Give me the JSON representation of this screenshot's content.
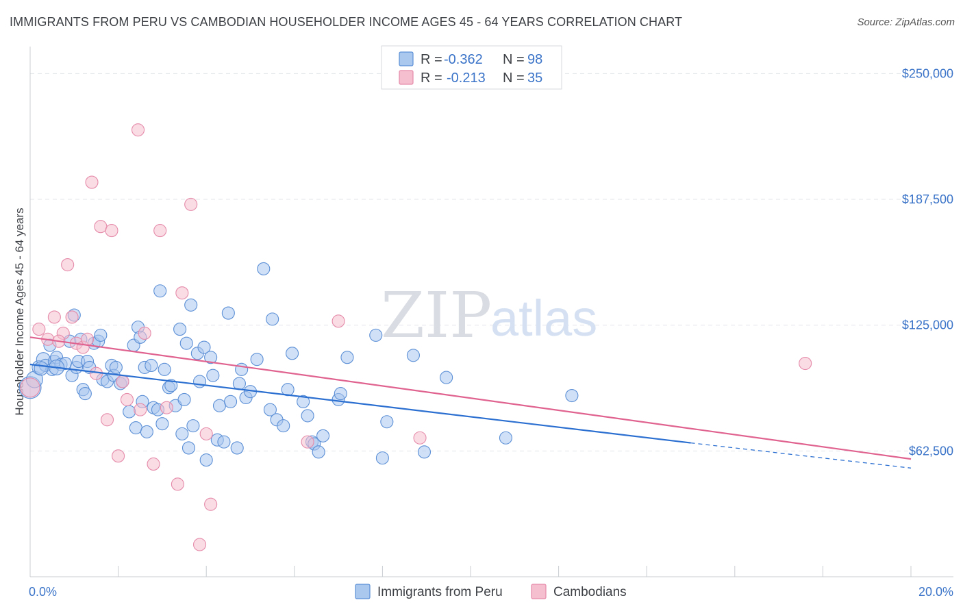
{
  "title": "IMMIGRANTS FROM PERU VS CAMBODIAN HOUSEHOLDER INCOME AGES 45 - 64 YEARS CORRELATION CHART",
  "source": "Source: ZipAtlas.com",
  "watermark": {
    "zip": "ZIP",
    "atlas": "atlas"
  },
  "legend_top": [
    {
      "r_label": "R = ",
      "r_value": "-0.362",
      "n_label": "N = ",
      "n_value": "98"
    },
    {
      "r_label": "R = ",
      "r_value": "-0.213",
      "n_label": "N = ",
      "n_value": "35"
    }
  ],
  "colors": {
    "peru_fill": "#aac7ee",
    "peru_stroke": "#5b8fd6",
    "peru_line": "#2b6fd1",
    "camb_fill": "#f6bfd0",
    "camb_stroke": "#e58aa9",
    "camb_line": "#e0628f",
    "accent_text": "#3b74c8",
    "grid": "#e3e6ea"
  },
  "chart_data": {
    "type": "scatter",
    "title": "IMMIGRANTS FROM PERU VS CAMBODIAN HOUSEHOLDER INCOME AGES 45 - 64 YEARS CORRELATION CHART",
    "xlabel": "",
    "ylabel": "Householder Income Ages 45 - 64 years",
    "xlim": [
      0,
      20
    ],
    "ylim": [
      0,
      260000
    ],
    "x_tick_labels": [
      "0.0%",
      "20.0%"
    ],
    "y_ticks": [
      62500,
      125000,
      187500,
      250000
    ],
    "y_tick_labels": [
      "$62,500",
      "$125,000",
      "$187,500",
      "$250,000"
    ],
    "grid": true,
    "legend_position": "top-center",
    "series": [
      {
        "name": "Immigrants from Peru",
        "trend": {
          "x": [
            0,
            15
          ],
          "y": [
            105500,
            66500
          ],
          "dashed_to": [
            20,
            54000
          ]
        },
        "points": [
          [
            0.0,
            94000,
            16
          ],
          [
            0.1,
            98000,
            12
          ],
          [
            0.2,
            104000,
            10
          ],
          [
            0.3,
            108000,
            10
          ],
          [
            0.35,
            105000,
            9
          ],
          [
            0.45,
            115000,
            9
          ],
          [
            0.5,
            103000,
            9
          ],
          [
            0.55,
            107000,
            9
          ],
          [
            0.6,
            109000,
            9
          ],
          [
            0.7,
            105500,
            9
          ],
          [
            0.8,
            106000,
            9
          ],
          [
            0.9,
            117000,
            9
          ],
          [
            0.95,
            100000,
            9
          ],
          [
            1.0,
            130000,
            9
          ],
          [
            1.05,
            104000,
            9
          ],
          [
            1.1,
            107000,
            9
          ],
          [
            1.15,
            118000,
            9
          ],
          [
            1.2,
            93000,
            9
          ],
          [
            1.25,
            91000,
            9
          ],
          [
            1.3,
            107000,
            9
          ],
          [
            1.35,
            104000,
            9
          ],
          [
            1.45,
            116000,
            9
          ],
          [
            1.55,
            117000,
            9
          ],
          [
            1.6,
            120000,
            9
          ],
          [
            1.65,
            98000,
            9
          ],
          [
            1.75,
            97000,
            9
          ],
          [
            1.85,
            105000,
            9
          ],
          [
            1.9,
            100000,
            9
          ],
          [
            1.95,
            104000,
            9
          ],
          [
            2.05,
            96000,
            9
          ],
          [
            2.1,
            97000,
            9
          ],
          [
            2.25,
            82000,
            9
          ],
          [
            2.35,
            115000,
            9
          ],
          [
            2.4,
            74000,
            9
          ],
          [
            2.45,
            124000,
            9
          ],
          [
            2.5,
            119000,
            9
          ],
          [
            2.55,
            87000,
            9
          ],
          [
            2.6,
            104000,
            9
          ],
          [
            2.65,
            72000,
            9
          ],
          [
            2.75,
            105000,
            9
          ],
          [
            2.8,
            84000,
            9
          ],
          [
            2.9,
            83000,
            9
          ],
          [
            2.95,
            142000,
            9
          ],
          [
            3.0,
            76000,
            9
          ],
          [
            3.05,
            103000,
            9
          ],
          [
            3.15,
            94000,
            9
          ],
          [
            3.2,
            95000,
            9
          ],
          [
            3.3,
            85000,
            9
          ],
          [
            3.4,
            123000,
            9
          ],
          [
            3.45,
            71000,
            9
          ],
          [
            3.5,
            88000,
            9
          ],
          [
            3.55,
            116000,
            9
          ],
          [
            3.6,
            64000,
            9
          ],
          [
            3.65,
            135000,
            9
          ],
          [
            3.7,
            75000,
            9
          ],
          [
            3.8,
            111000,
            9
          ],
          [
            3.85,
            97000,
            9
          ],
          [
            3.95,
            114000,
            9
          ],
          [
            4.0,
            58000,
            9
          ],
          [
            4.1,
            109000,
            9
          ],
          [
            4.15,
            100000,
            9
          ],
          [
            4.25,
            68000,
            9
          ],
          [
            4.3,
            85000,
            9
          ],
          [
            4.4,
            67000,
            9
          ],
          [
            4.5,
            131000,
            9
          ],
          [
            4.55,
            87000,
            9
          ],
          [
            4.7,
            64000,
            9
          ],
          [
            4.75,
            96000,
            9
          ],
          [
            4.8,
            103000,
            9
          ],
          [
            4.9,
            89000,
            9
          ],
          [
            5.0,
            92000,
            9
          ],
          [
            5.15,
            108000,
            9
          ],
          [
            5.3,
            153000,
            9
          ],
          [
            5.45,
            83000,
            9
          ],
          [
            5.5,
            128000,
            9
          ],
          [
            5.6,
            78000,
            9
          ],
          [
            5.75,
            75000,
            9
          ],
          [
            5.85,
            93000,
            9
          ],
          [
            5.95,
            111000,
            9
          ],
          [
            6.2,
            87000,
            9
          ],
          [
            6.3,
            80000,
            9
          ],
          [
            6.4,
            67000,
            9
          ],
          [
            6.45,
            66000,
            9
          ],
          [
            6.55,
            62000,
            9
          ],
          [
            6.65,
            70000,
            9
          ],
          [
            7.0,
            88000,
            9
          ],
          [
            7.05,
            91000,
            9
          ],
          [
            7.2,
            109000,
            9
          ],
          [
            7.85,
            120000,
            9
          ],
          [
            8.0,
            59000,
            9
          ],
          [
            8.1,
            77000,
            9
          ],
          [
            8.7,
            110000,
            9
          ],
          [
            8.95,
            62000,
            9
          ],
          [
            9.45,
            99000,
            9
          ],
          [
            10.8,
            69000,
            9
          ],
          [
            12.3,
            90000,
            9
          ],
          [
            0.6,
            104000,
            11
          ],
          [
            0.25,
            103500,
            10
          ]
        ]
      },
      {
        "name": "Cambodians",
        "trend": {
          "x": [
            0,
            20
          ],
          "y": [
            119000,
            58500
          ]
        },
        "points": [
          [
            0.0,
            94000,
            14
          ],
          [
            0.2,
            123000,
            9
          ],
          [
            0.4,
            118000,
            9
          ],
          [
            0.55,
            129000,
            9
          ],
          [
            0.75,
            121000,
            9
          ],
          [
            0.85,
            155000,
            9
          ],
          [
            0.95,
            129000,
            9
          ],
          [
            1.05,
            116000,
            9
          ],
          [
            1.2,
            114000,
            9
          ],
          [
            1.3,
            118000,
            9
          ],
          [
            1.4,
            196000,
            9
          ],
          [
            1.5,
            101000,
            9
          ],
          [
            1.6,
            174000,
            9
          ],
          [
            1.75,
            78000,
            9
          ],
          [
            1.85,
            172000,
            9
          ],
          [
            2.0,
            60000,
            9
          ],
          [
            2.1,
            97000,
            9
          ],
          [
            2.2,
            88000,
            9
          ],
          [
            2.45,
            222000,
            9
          ],
          [
            2.5,
            83000,
            9
          ],
          [
            2.6,
            121000,
            9
          ],
          [
            2.8,
            56000,
            9
          ],
          [
            2.95,
            172000,
            9
          ],
          [
            3.1,
            84000,
            9
          ],
          [
            3.35,
            46000,
            9
          ],
          [
            3.45,
            141000,
            9
          ],
          [
            3.65,
            185000,
            9
          ],
          [
            3.85,
            16000,
            9
          ],
          [
            4.0,
            71000,
            9
          ],
          [
            4.1,
            36000,
            9
          ],
          [
            6.3,
            67000,
            9
          ],
          [
            7.0,
            127000,
            9
          ],
          [
            8.85,
            69000,
            9
          ],
          [
            17.6,
            106000,
            9
          ],
          [
            0.65,
            117000,
            9
          ]
        ]
      }
    ]
  },
  "bottom_legend": [
    {
      "label": "Immigrants from Peru"
    },
    {
      "label": "Cambodians"
    }
  ]
}
